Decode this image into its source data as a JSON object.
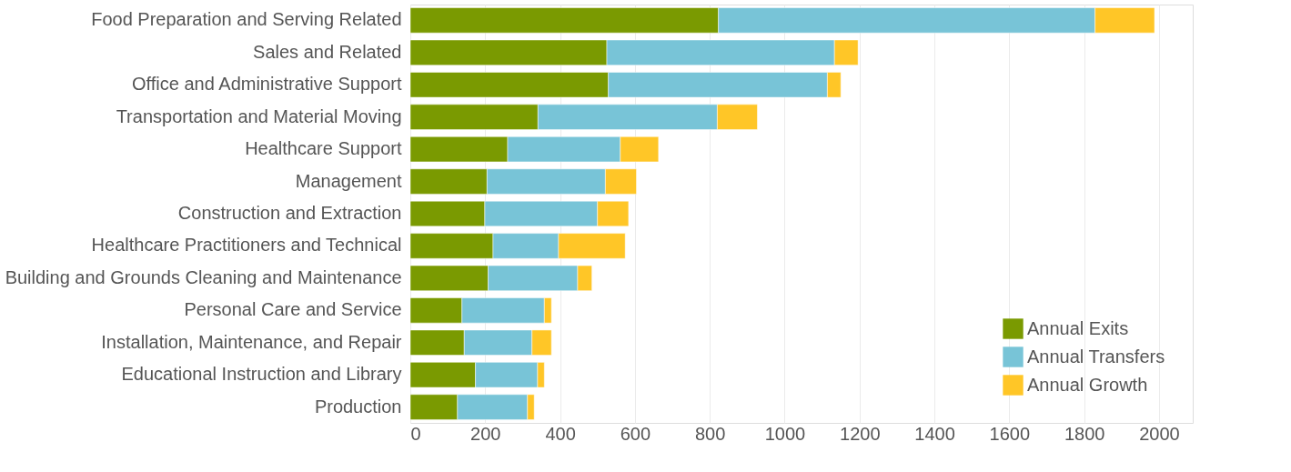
{
  "chart_data": {
    "type": "bar",
    "orientation": "horizontal",
    "stacked": true,
    "categories": [
      "Food Preparation and Serving Related",
      "Sales and Related",
      "Office and Administrative Support",
      "Transportation and Material Moving",
      "Healthcare Support",
      "Management",
      "Construction and Extraction",
      "Healthcare Practitioners and Technical",
      "Building and Grounds Cleaning and Maintenance",
      "Personal Care and Service",
      "Installation, Maintenance, and Repair",
      "Educational Instruction and Library",
      "Production"
    ],
    "series": [
      {
        "name": "Annual Exits",
        "color": "#7a9a01",
        "values": [
          823,
          525,
          529,
          341,
          260,
          205,
          199,
          221,
          208,
          138,
          144,
          174,
          126
        ]
      },
      {
        "name": "Annual Transfers",
        "color": "#78c4d7",
        "values": [
          1006,
          608,
          585,
          479,
          301,
          316,
          301,
          175,
          239,
          220,
          181,
          166,
          187
        ]
      },
      {
        "name": "Annual Growth",
        "color": "#ffc627",
        "values": [
          159,
          63,
          36,
          107,
          102,
          83,
          83,
          178,
          38,
          19,
          52,
          18,
          18
        ]
      }
    ],
    "xlim": [
      0,
      2090
    ],
    "xticks": [
      0,
      200,
      400,
      600,
      800,
      1000,
      1200,
      1400,
      1600,
      1800,
      2000
    ],
    "grid": "x",
    "legend": "bottom right"
  }
}
